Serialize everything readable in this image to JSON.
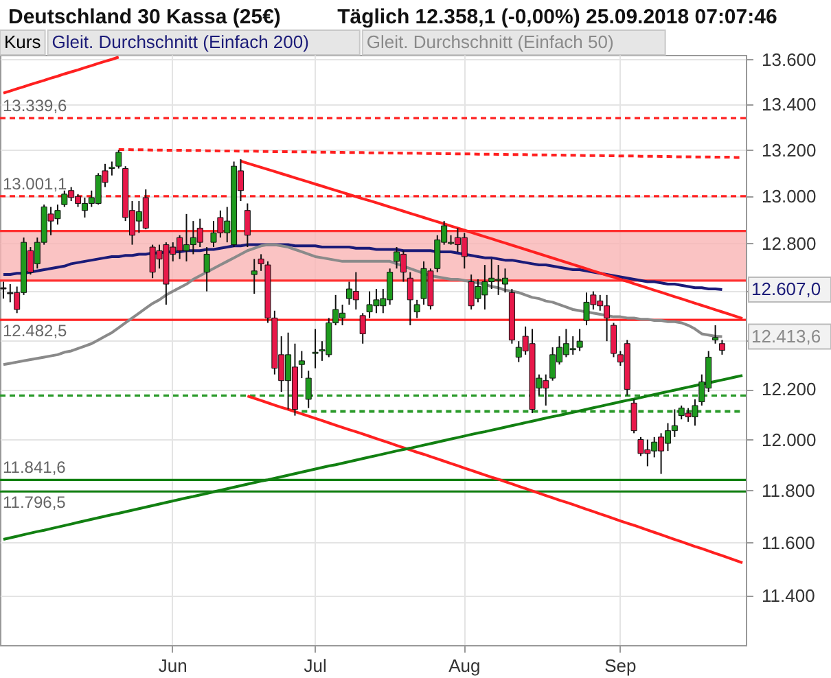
{
  "chart_data": {
    "type": "candlestick",
    "title": "Deutschland 30 Kassa (25€)",
    "subtitle": "Täglich   12.358,1 (-0,00%)   25.09.2018 07:07:46",
    "categories": [
      null,
      null,
      null,
      null,
      null,
      null,
      null,
      null,
      null,
      null,
      null,
      null,
      null,
      null,
      null,
      null,
      null,
      null,
      null,
      null,
      null,
      null,
      null,
      null,
      null,
      "Jun",
      null,
      null,
      null,
      null,
      null,
      null,
      null,
      null,
      null,
      null,
      null,
      null,
      null,
      null,
      null,
      null,
      null,
      null,
      null,
      null,
      "Jul",
      null,
      null,
      null,
      null,
      null,
      null,
      null,
      null,
      null,
      null,
      null,
      null,
      null,
      null,
      null,
      null,
      null,
      null,
      null,
      null,
      null,
      "Aug",
      null,
      null,
      null,
      null,
      null,
      null,
      null,
      null,
      null,
      null,
      null,
      null,
      null,
      null,
      null,
      null,
      null,
      null,
      null,
      null,
      null,
      null,
      "Sep",
      null,
      null,
      null,
      null,
      null,
      null,
      null,
      null,
      null,
      null,
      null,
      null,
      null,
      null,
      null,
      null,
      null,
      null
    ],
    "ylim": [
      11215,
      13620
    ],
    "log": true,
    "yticks": [
      {
        "value": 11400,
        "label": "11.400"
      },
      {
        "value": 11600,
        "label": "11.600"
      },
      {
        "value": 11800,
        "label": "11.800"
      },
      {
        "value": 12000,
        "label": "12.000"
      },
      {
        "value": 12200,
        "label": "12.200"
      },
      {
        "value": 12400,
        "label": null
      },
      {
        "value": 12600,
        "label": null
      },
      {
        "value": 12800,
        "label": "12.800"
      },
      {
        "value": 13000,
        "label": "13.000"
      },
      {
        "value": 13200,
        "label": "13.200"
      },
      {
        "value": 13400,
        "label": "13.400"
      },
      {
        "value": 13600,
        "label": "13.600"
      }
    ],
    "grid": true,
    "legend": "top left",
    "marker": "none",
    "series": [
      {
        "name": "Kurs",
        "ohlc": [
          [
            12610,
            12640,
            12570,
            12615
          ],
          [
            12595,
            12630,
            12555,
            12590
          ],
          [
            12595,
            12620,
            12510,
            12525
          ],
          [
            12595,
            12825,
            12585,
            12805
          ],
          [
            12770,
            12785,
            12670,
            12680
          ],
          [
            12715,
            12825,
            12695,
            12805
          ],
          [
            12805,
            12965,
            12795,
            12955
          ],
          [
            12925,
            12955,
            12835,
            12895
          ],
          [
            12905,
            12965,
            12880,
            12940
          ],
          [
            12965,
            13025,
            12955,
            13010
          ],
          [
            13025,
            13040,
            12980,
            12995
          ],
          [
            13000,
            13010,
            12955,
            12970
          ],
          [
            12940,
            12995,
            12910,
            12970
          ],
          [
            12970,
            13025,
            12955,
            12995
          ],
          [
            12970,
            13100,
            12965,
            13090
          ],
          [
            13110,
            13140,
            13040,
            13060
          ],
          [
            13120,
            13150,
            13090,
            13125
          ],
          [
            13130,
            13200,
            13120,
            13190
          ],
          [
            13120,
            13130,
            12895,
            12910
          ],
          [
            12940,
            12980,
            12795,
            12835
          ],
          [
            12895,
            12980,
            12845,
            12935
          ],
          [
            12995,
            13030,
            12860,
            12865
          ],
          [
            12785,
            12795,
            12655,
            12680
          ],
          [
            12770,
            12795,
            12695,
            12735
          ],
          [
            12795,
            12805,
            12545,
            12630
          ],
          [
            12785,
            12805,
            12725,
            12755
          ],
          [
            12825,
            12835,
            12735,
            12770
          ],
          [
            12770,
            12925,
            12725,
            12795
          ],
          [
            12795,
            12895,
            12755,
            12825
          ],
          [
            12865,
            12905,
            12785,
            12805
          ],
          [
            12680,
            12785,
            12600,
            12755
          ],
          [
            12805,
            12895,
            12785,
            12845
          ],
          [
            12910,
            12940,
            12825,
            12845
          ],
          [
            12845,
            12955,
            12805,
            12895
          ],
          [
            12795,
            13150,
            12785,
            13130
          ],
          [
            13110,
            13160,
            12980,
            13025
          ],
          [
            12940,
            12970,
            12785,
            12835
          ],
          [
            12670,
            12735,
            12590,
            12685
          ],
          [
            12735,
            12755,
            12685,
            12715
          ],
          [
            12710,
            12725,
            12470,
            12490
          ],
          [
            12490,
            12520,
            12260,
            12285
          ],
          [
            12340,
            12415,
            12190,
            12235
          ],
          [
            12235,
            12430,
            12120,
            12340
          ],
          [
            12290,
            12385,
            12095,
            12120
          ],
          [
            12300,
            12355,
            12245,
            12315
          ],
          [
            12160,
            12275,
            12125,
            12245
          ],
          [
            12345,
            12445,
            12285,
            12350
          ],
          [
            12355,
            12395,
            12315,
            12360
          ],
          [
            12340,
            12490,
            12330,
            12470
          ],
          [
            12470,
            12585,
            12460,
            12525
          ],
          [
            12490,
            12545,
            12460,
            12510
          ],
          [
            12570,
            12640,
            12545,
            12610
          ],
          [
            12600,
            12680,
            12525,
            12565
          ],
          [
            12500,
            12510,
            12385,
            12425
          ],
          [
            12515,
            12600,
            12490,
            12545
          ],
          [
            12540,
            12610,
            12510,
            12565
          ],
          [
            12540,
            12610,
            12510,
            12570
          ],
          [
            12565,
            12695,
            12545,
            12680
          ],
          [
            12725,
            12785,
            12695,
            12765
          ],
          [
            12755,
            12770,
            12640,
            12680
          ],
          [
            12655,
            12680,
            12460,
            12565
          ],
          [
            12515,
            12565,
            12490,
            12545
          ],
          [
            12570,
            12725,
            12545,
            12695
          ],
          [
            12685,
            12695,
            12525,
            12540
          ],
          [
            12695,
            12835,
            12680,
            12815
          ],
          [
            12805,
            12895,
            12795,
            12875
          ],
          [
            12800,
            12835,
            12795,
            12805
          ],
          [
            12825,
            12865,
            12765,
            12795
          ],
          [
            12825,
            12845,
            12695,
            12745
          ],
          [
            12640,
            12670,
            12525,
            12540
          ],
          [
            12570,
            12650,
            12555,
            12620
          ],
          [
            12585,
            12710,
            12525,
            12640
          ],
          [
            12640,
            12735,
            12610,
            12655
          ],
          [
            12645,
            12710,
            12585,
            12650
          ],
          [
            12630,
            12695,
            12595,
            12655
          ],
          [
            12595,
            12610,
            12385,
            12400
          ],
          [
            12330,
            12395,
            12310,
            12370
          ],
          [
            12415,
            12455,
            12340,
            12355
          ],
          [
            12385,
            12445,
            12105,
            12120
          ],
          [
            12205,
            12260,
            12175,
            12245
          ],
          [
            12235,
            12260,
            12135,
            12205
          ],
          [
            12245,
            12370,
            12235,
            12340
          ],
          [
            12310,
            12415,
            12300,
            12370
          ],
          [
            12340,
            12445,
            12330,
            12385
          ],
          [
            12360,
            12415,
            12340,
            12365
          ],
          [
            12370,
            12445,
            12355,
            12395
          ],
          [
            12480,
            12595,
            12460,
            12555
          ],
          [
            12585,
            12600,
            12525,
            12545
          ],
          [
            12560,
            12585,
            12520,
            12540
          ],
          [
            12540,
            12585,
            12395,
            12490
          ],
          [
            12460,
            12470,
            12330,
            12345
          ],
          [
            12340,
            12355,
            12295,
            12310
          ],
          [
            12385,
            12400,
            12175,
            12200
          ],
          [
            12145,
            12160,
            12025,
            12035
          ],
          [
            12000,
            12010,
            11935,
            11945
          ],
          [
            11960,
            12000,
            11895,
            11945
          ],
          [
            11955,
            12010,
            11930,
            11990
          ],
          [
            12010,
            12025,
            11865,
            11955
          ],
          [
            11985,
            12065,
            11955,
            12035
          ],
          [
            12035,
            12120,
            12010,
            12055
          ],
          [
            12095,
            12135,
            12080,
            12125
          ],
          [
            12105,
            12125,
            12070,
            12090
          ],
          [
            12090,
            12160,
            12055,
            12135
          ],
          [
            12150,
            12260,
            12135,
            12230
          ],
          [
            12205,
            12355,
            12190,
            12330
          ],
          [
            12400,
            12460,
            12385,
            12410
          ],
          [
            12385,
            12400,
            12340,
            12358
          ],
          null,
          null,
          null
        ],
        "colors": [
          "#222222",
          "#222222",
          "#e8184a",
          "#1e9a1e",
          "#e8184a",
          "#1e9a1e",
          "#1e9a1e",
          "#e8184a",
          "#1e9a1e",
          "#1e9a1e",
          "#e8184a",
          "#e8184a",
          "#1e9a1e",
          "#1e9a1e",
          "#1e9a1e",
          "#e8184a",
          "#1e9a1e",
          "#1e9a1e",
          "#e8184a",
          "#e8184a",
          "#1e9a1e",
          "#e8184a",
          "#e8184a",
          "#e8184a",
          "#e8184a",
          "#e8184a",
          "#e8184a",
          "#1e9a1e",
          "#1e9a1e",
          "#e8184a",
          "#1e9a1e",
          "#1e9a1e",
          "#e8184a",
          "#1e9a1e",
          "#1e9a1e",
          "#e8184a",
          "#e8184a",
          "#1e9a1e",
          "#e8184a",
          "#e8184a",
          "#e8184a",
          "#e8184a",
          "#1e9a1e",
          "#e8184a",
          "#1e9a1e",
          "#1e9a1e",
          "#1e9a1e",
          "#1e9a1e",
          "#1e9a1e",
          "#1e9a1e",
          "#1e9a1e",
          "#1e9a1e",
          "#e8184a",
          "#e8184a",
          "#1e9a1e",
          "#1e9a1e",
          "#1e9a1e",
          "#1e9a1e",
          "#1e9a1e",
          "#e8184a",
          "#e8184a",
          "#1e9a1e",
          "#1e9a1e",
          "#e8184a",
          "#1e9a1e",
          "#1e9a1e",
          "#1e9a1e",
          "#e8184a",
          "#e8184a",
          "#e8184a",
          "#1e9a1e",
          "#1e9a1e",
          "#1e9a1e",
          "#1e9a1e",
          "#1e9a1e",
          "#e8184a",
          "#1e9a1e",
          "#e8184a",
          "#e8184a",
          "#1e9a1e",
          "#e8184a",
          "#1e9a1e",
          "#1e9a1e",
          "#1e9a1e",
          "#1e9a1e",
          "#1e9a1e",
          "#1e9a1e",
          "#e8184a",
          "#e8184a",
          "#e8184a",
          "#e8184a",
          "#e8184a",
          "#e8184a",
          "#e8184a",
          "#e8184a",
          "#e8184a",
          "#1e9a1e",
          "#e8184a",
          "#1e9a1e",
          "#1e9a1e",
          "#1e9a1e",
          "#e8184a",
          "#1e9a1e",
          "#1e9a1e",
          "#1e9a1e",
          "#1e9a1e",
          "#e8184a",
          null,
          null,
          null
        ]
      },
      {
        "name": "Gleit. Durchschnitt (Einfach 200)",
        "type": "line",
        "color": "#1b1b78",
        "values": [
          12670,
          12670,
          12675,
          12675,
          12680,
          12685,
          12690,
          12695,
          12700,
          12705,
          12715,
          12720,
          12725,
          12730,
          12735,
          12740,
          12745,
          12745,
          12750,
          12750,
          12755,
          12755,
          12760,
          12760,
          12765,
          12765,
          12765,
          12770,
          12770,
          12770,
          12775,
          12775,
          12780,
          12785,
          12790,
          12790,
          12795,
          12795,
          12795,
          12795,
          12795,
          12795,
          12795,
          12790,
          12790,
          12790,
          12790,
          12785,
          12785,
          12785,
          12785,
          12785,
          12780,
          12780,
          12780,
          12775,
          12775,
          12775,
          12775,
          12770,
          12770,
          12770,
          12770,
          12770,
          12765,
          12765,
          12765,
          12760,
          12755,
          12750,
          12745,
          12740,
          12740,
          12735,
          12730,
          12730,
          12725,
          12720,
          12715,
          12710,
          12710,
          12705,
          12700,
          12695,
          12690,
          12690,
          12685,
          12680,
          12675,
          12670,
          12665,
          12660,
          12655,
          12650,
          12645,
          12640,
          12640,
          12635,
          12630,
          12630,
          12625,
          12620,
          12615,
          12615,
          12610,
          12610,
          12607,
          null,
          null,
          null
        ],
        "value_labels": [
          null,
          null,
          null,
          null,
          null,
          null,
          null,
          null,
          null,
          null,
          null,
          null,
          null,
          null,
          null,
          null,
          null,
          null,
          null,
          null,
          null,
          null,
          null,
          null,
          null,
          null,
          null,
          null,
          null,
          null,
          null,
          null,
          null,
          null,
          null,
          null,
          null,
          null,
          null,
          null,
          null,
          null,
          null,
          null,
          null,
          null,
          null,
          null,
          null,
          null,
          null,
          null,
          null,
          null,
          null,
          null,
          null,
          null,
          null,
          null,
          null,
          null,
          null,
          null,
          null,
          null,
          null,
          null,
          null,
          null,
          null,
          null,
          null,
          null,
          null,
          null,
          null,
          null,
          null,
          null,
          null,
          null,
          null,
          null,
          null,
          null,
          null,
          null,
          null,
          null,
          null,
          null,
          null,
          null,
          null,
          null,
          null,
          null,
          null,
          null,
          null,
          null,
          null,
          null,
          null,
          null,
          "12.607,0",
          null,
          null,
          null
        ]
      },
      {
        "name": "Gleit. Durchschnitt (Einfach 50)",
        "type": "line",
        "color": "#8a8a8a",
        "values": [
          12300,
          12305,
          12310,
          12315,
          12320,
          12325,
          12330,
          12335,
          12340,
          12350,
          12355,
          12365,
          12375,
          12385,
          12400,
          12415,
          12430,
          12450,
          12470,
          12490,
          12510,
          12530,
          12550,
          12565,
          12585,
          12600,
          12615,
          12630,
          12650,
          12665,
          12680,
          12695,
          12710,
          12725,
          12740,
          12755,
          12770,
          12780,
          12790,
          12795,
          12795,
          12790,
          12785,
          12775,
          12765,
          12755,
          12745,
          12740,
          12735,
          12730,
          12725,
          12725,
          12725,
          12725,
          12725,
          12725,
          12725,
          12725,
          12715,
          12705,
          12695,
          12685,
          12675,
          12665,
          12660,
          12655,
          12650,
          12650,
          12645,
          12640,
          12635,
          12630,
          12620,
          12615,
          12605,
          12600,
          12595,
          12585,
          12575,
          12570,
          12560,
          12555,
          12545,
          12535,
          12525,
          12520,
          12515,
          12510,
          12505,
          12500,
          12495,
          12495,
          12490,
          12490,
          12485,
          12485,
          12480,
          12480,
          12475,
          12475,
          12470,
          12460,
          12445,
          12425,
          12420,
          12415,
          12413.6,
          null,
          null,
          null
        ],
        "value_labels": [
          null,
          null,
          null,
          null,
          null,
          null,
          null,
          null,
          null,
          null,
          null,
          null,
          null,
          null,
          null,
          null,
          null,
          null,
          null,
          null,
          null,
          null,
          null,
          null,
          null,
          null,
          null,
          null,
          null,
          null,
          null,
          null,
          null,
          null,
          null,
          null,
          null,
          null,
          null,
          null,
          null,
          null,
          null,
          null,
          null,
          null,
          null,
          null,
          null,
          null,
          null,
          null,
          null,
          null,
          null,
          null,
          null,
          null,
          null,
          null,
          null,
          null,
          null,
          null,
          null,
          null,
          null,
          null,
          null,
          null,
          null,
          null,
          null,
          null,
          null,
          null,
          null,
          null,
          null,
          null,
          null,
          null,
          null,
          null,
          null,
          null,
          null,
          null,
          null,
          null,
          null,
          null,
          null,
          null,
          null,
          null,
          null,
          null,
          null,
          null,
          null,
          null,
          null,
          null,
          null,
          null,
          "12.413,6",
          null,
          null,
          null
        ]
      },
      {
        "type": "line",
        "color": "#ff2020",
        "values": [
          13450,
          13459,
          13469,
          13478,
          13488,
          13497,
          13506,
          13516,
          13525,
          13535,
          13544,
          13553,
          13563,
          13572,
          13582,
          13591,
          13600,
          13610,
          null,
          null,
          null,
          null,
          null,
          null,
          null,
          null,
          null,
          null,
          null,
          null,
          null,
          null,
          null,
          null,
          null,
          null,
          null,
          null,
          null,
          null,
          null,
          null,
          null,
          null,
          null,
          null,
          null,
          null,
          null,
          null,
          null,
          null,
          null,
          null,
          null,
          null,
          null,
          null,
          null,
          null,
          null,
          null,
          null,
          null,
          null,
          null,
          null,
          null,
          null,
          null,
          null,
          null,
          null,
          null,
          null,
          null,
          null,
          null,
          null,
          null,
          null,
          null,
          null,
          null,
          null,
          null,
          null,
          null,
          null,
          null,
          null,
          null,
          null,
          null,
          null,
          null,
          null,
          null,
          null,
          null,
          null,
          null,
          null,
          null,
          null,
          null,
          null,
          null,
          null,
          null
        ]
      },
      {
        "type": "line",
        "color": "#ff2020",
        "line_style": "dashed",
        "values": [
          null,
          null,
          null,
          null,
          null,
          null,
          null,
          null,
          null,
          null,
          null,
          null,
          null,
          null,
          null,
          null,
          null,
          13202,
          13202,
          13201,
          13201,
          13201,
          13200,
          13200,
          13199,
          13199,
          13199,
          13198,
          13198,
          13198,
          13197,
          13197,
          13196,
          13196,
          13196,
          13195,
          13195,
          13195,
          13194,
          13194,
          13193,
          13193,
          13193,
          13192,
          13192,
          13192,
          13191,
          13191,
          13191,
          13190,
          13190,
          13189,
          13189,
          13189,
          13188,
          13188,
          13188,
          13187,
          13187,
          13186,
          13186,
          13186,
          13185,
          13185,
          13185,
          13184,
          13184,
          13183,
          13183,
          13183,
          13182,
          13182,
          13182,
          13181,
          13181,
          13180,
          13180,
          13180,
          13179,
          13179,
          13179,
          13178,
          13178,
          13177,
          13177,
          13177,
          13176,
          13176,
          13176,
          13175,
          13175,
          13174,
          13174,
          13174,
          13173,
          13173,
          13173,
          13172,
          13172,
          13171,
          13171,
          13171,
          13170,
          13170,
          13170,
          13169,
          13169,
          13169,
          13168,
          13168
        ]
      },
      {
        "type": "line",
        "color": "#ff2020",
        "values": [
          null,
          null,
          null,
          null,
          null,
          null,
          null,
          null,
          null,
          null,
          null,
          null,
          null,
          null,
          null,
          null,
          null,
          null,
          null,
          null,
          null,
          null,
          null,
          null,
          null,
          null,
          null,
          null,
          null,
          null,
          null,
          null,
          null,
          null,
          null,
          13152,
          13143,
          13134,
          13125,
          13116,
          13107,
          13098,
          13089,
          13080,
          13071,
          13062,
          13053,
          13044,
          13035,
          13026,
          13017,
          13008,
          12999,
          12990,
          12982,
          12973,
          12964,
          12955,
          12946,
          12937,
          12928,
          12919,
          12910,
          12901,
          12892,
          12883,
          12874,
          12865,
          12856,
          12847,
          12838,
          12829,
          12820,
          12811,
          12802,
          12793,
          12784,
          12775,
          12766,
          12757,
          12748,
          12739,
          12730,
          12721,
          12712,
          12703,
          12694,
          12685,
          12676,
          12667,
          12659,
          12650,
          12641,
          12632,
          12623,
          12614,
          12605,
          12596,
          12587,
          12578,
          12569,
          12560,
          12551,
          12542,
          12533,
          12524,
          12515,
          12506,
          12497,
          12488
        ]
      },
      {
        "type": "line",
        "color": "#ff2020",
        "values": [
          null,
          null,
          null,
          null,
          null,
          null,
          null,
          null,
          null,
          null,
          null,
          null,
          null,
          null,
          null,
          null,
          null,
          null,
          null,
          null,
          null,
          null,
          null,
          null,
          null,
          null,
          null,
          null,
          null,
          null,
          null,
          null,
          null,
          null,
          null,
          null,
          12173,
          12164,
          12155,
          12146,
          12137,
          12128,
          12120,
          12111,
          12102,
          12093,
          12084,
          12075,
          12066,
          12057,
          12048,
          12039,
          12031,
          12022,
          12013,
          12004,
          11995,
          11986,
          11977,
          11968,
          11959,
          11950,
          11942,
          11933,
          11924,
          11915,
          11906,
          11897,
          11888,
          11879,
          11870,
          11861,
          11852,
          11844,
          11835,
          11826,
          11817,
          11808,
          11799,
          11790,
          11781,
          11772,
          11763,
          11755,
          11746,
          11737,
          11728,
          11719,
          11710,
          11701,
          11692,
          11683,
          11674,
          11666,
          11657,
          11648,
          11639,
          11630,
          11621,
          11612,
          11603,
          11594,
          11585,
          11577,
          11568,
          11559,
          11550,
          11541,
          11532,
          11523
        ]
      },
      {
        "type": "line",
        "color": "#2a9a2a",
        "line_style": "dashed",
        "values": [
          null,
          null,
          null,
          null,
          null,
          null,
          null,
          null,
          null,
          null,
          null,
          null,
          null,
          null,
          null,
          null,
          null,
          null,
          null,
          null,
          null,
          null,
          null,
          null,
          null,
          null,
          null,
          null,
          null,
          null,
          null,
          null,
          null,
          null,
          null,
          null,
          null,
          null,
          null,
          null,
          null,
          null,
          null,
          null,
          12112,
          12112,
          12112,
          12112,
          12112,
          12112,
          12112,
          12112,
          12112,
          12112,
          12112,
          12112,
          12112,
          12112,
          12112,
          12112,
          12112,
          12112,
          12112,
          12112,
          12112,
          12112,
          12112,
          12112,
          12112,
          12112,
          12112,
          12112,
          12112,
          12112,
          12112,
          12112,
          12112,
          12112,
          12112,
          12112,
          12112,
          12112,
          12112,
          12112,
          12112,
          12112,
          12112,
          12112,
          12112,
          12112,
          12112,
          12112,
          12112,
          12112,
          12112,
          12112,
          12112,
          12112,
          12112,
          12112,
          12112,
          12112,
          12112,
          12112,
          12112,
          12112,
          12112,
          12112,
          12112,
          12112
        ]
      },
      {
        "type": "line",
        "color": "#128012",
        "values": [
          11612,
          11618,
          11624,
          11630,
          11636,
          11642,
          11647,
          11653,
          11659,
          11665,
          11671,
          11677,
          11683,
          11689,
          11695,
          11701,
          11707,
          11712,
          11718,
          11724,
          11730,
          11736,
          11742,
          11748,
          11754,
          11760,
          11766,
          11772,
          11777,
          11783,
          11789,
          11795,
          11801,
          11807,
          11813,
          11819,
          11825,
          11831,
          11837,
          11842,
          11848,
          11854,
          11860,
          11866,
          11872,
          11878,
          11884,
          11890,
          11896,
          11901,
          11907,
          11913,
          11919,
          11925,
          11931,
          11937,
          11943,
          11949,
          11955,
          11961,
          11966,
          11972,
          11978,
          11984,
          11990,
          11996,
          12002,
          12008,
          12014,
          12020,
          12026,
          12031,
          12037,
          12043,
          12049,
          12055,
          12061,
          12067,
          12073,
          12079,
          12085,
          12091,
          12096,
          12102,
          12108,
          12114,
          12120,
          12126,
          12132,
          12138,
          12144,
          12150,
          12156,
          12161,
          12167,
          12173,
          12179,
          12185,
          12191,
          12197,
          12203,
          12209,
          12215,
          12221,
          12226,
          12232,
          12238,
          12244,
          12250,
          12256
        ]
      }
    ],
    "ref_lines": [
      {
        "axis": "y",
        "value": 13339.6,
        "label": "13.339,6",
        "color": "#ff2020",
        "line_style": "dashed"
      },
      {
        "axis": "y",
        "value": 13001.1,
        "label": "13.001,1",
        "color": "#ff2020",
        "line_style": "dashed"
      },
      {
        "axis": "y",
        "value": 12853,
        "color": "#ff3030"
      },
      {
        "axis": "y",
        "value": 12645,
        "color": "#ff3030"
      },
      {
        "axis": "y",
        "value": 12482.5,
        "label": "12.482,5",
        "color": "#ff2020"
      },
      {
        "axis": "y",
        "value": 12175,
        "color": "#2a9a2a",
        "line_style": "dashed"
      },
      {
        "axis": "y",
        "value": 11841.6,
        "label": "11.841,6",
        "color": "#128012"
      },
      {
        "axis": "y",
        "value": 11796.5,
        "label": "11.796,5",
        "color": "#128012"
      }
    ],
    "bands": [
      {
        "axis": "y",
        "from": 12645,
        "to": 12853,
        "color": "#f9b4b4"
      }
    ]
  }
}
